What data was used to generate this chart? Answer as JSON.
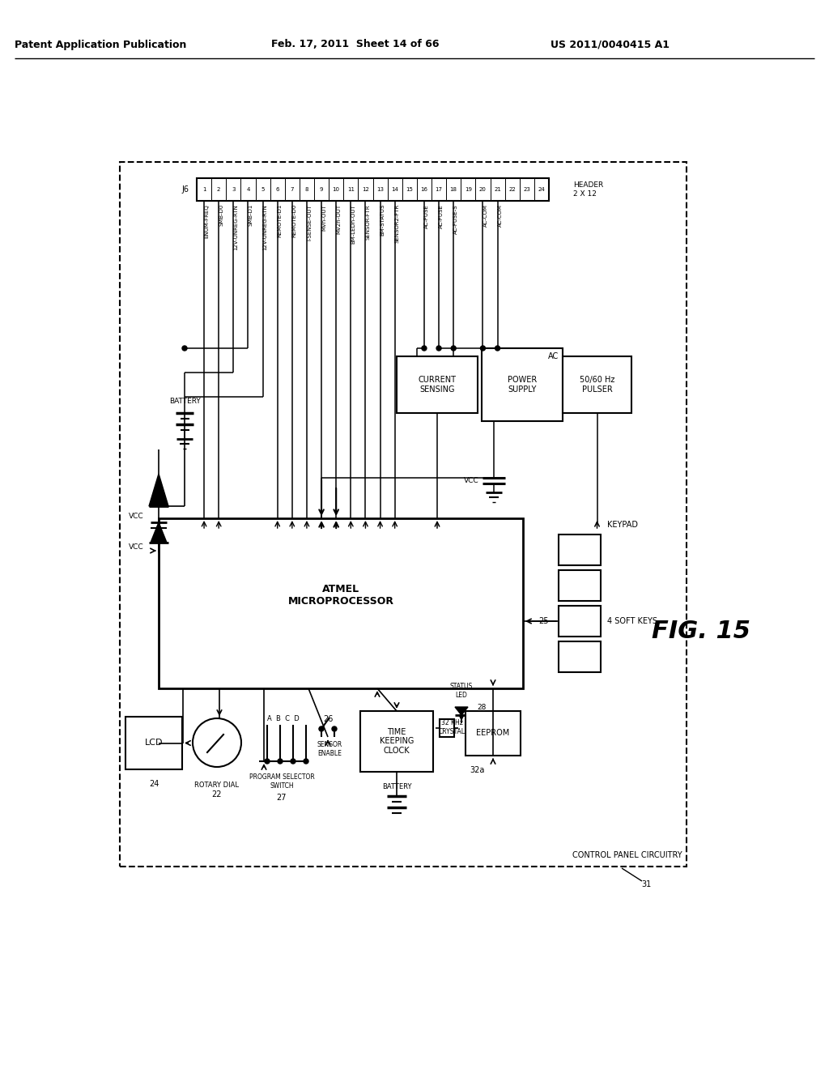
{
  "header_line1": "Patent Application Publication",
  "header_line2": "Feb. 17, 2011  Sheet 14 of 66",
  "header_line3": "US 2011/0040415 A1",
  "fig_label": "FIG. 15",
  "pin_labels": [
    "ENUM-FREQ",
    "SMB-D0",
    "12V-UNREG-RTN",
    "SMB-D1",
    "12V-UNREG-RTN",
    "REMOTE-D1",
    "REMOTE-D0",
    "I-SENSE-OUT",
    "MVn-OUT",
    "MV2n-OUT",
    "BM-LEDn-OUT",
    "SENSOR-FTR",
    "BM-STATUS",
    "SENSOR2-FTR",
    "",
    "AC-FUSE",
    "AC-FUSE",
    "AC-FUSE-S",
    "",
    "AC-COM",
    "AC-COM",
    "",
    "",
    ""
  ],
  "connector_label": "J6",
  "header_text": "HEADER\n2 X 12"
}
